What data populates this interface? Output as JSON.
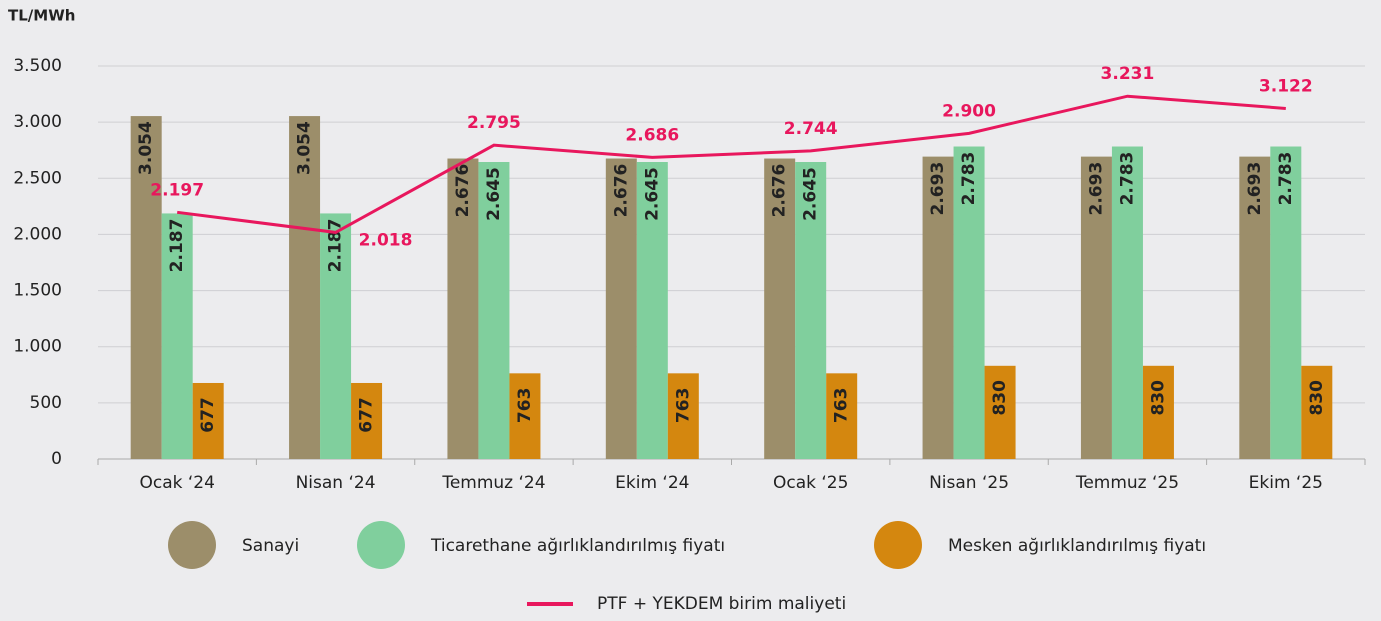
{
  "chart_data": {
    "type": "bar_line",
    "y_axis_label": "TL/MWh",
    "categories": [
      "Ocak ‘24",
      "Nisan ‘24",
      "Temmuz ‘24",
      "Ekim ‘24",
      "Ocak ‘25",
      "Nisan ‘25",
      "Temmuz ‘25",
      "Ekim ‘25"
    ],
    "series": [
      {
        "name": "Sanayi",
        "color": "#9c8e6a",
        "type": "bar",
        "values": [
          3054,
          3054,
          2676,
          2676,
          2676,
          2693,
          2693,
          2693
        ],
        "value_labels": [
          "3.054",
          "3.054",
          "2.676",
          "2.676",
          "2.676",
          "2.693",
          "2.693",
          "2.693"
        ]
      },
      {
        "name": "Ticarethane ağırlıklandırılmış fiyatı",
        "color": "#80cf9d",
        "type": "bar",
        "values": [
          2187,
          2187,
          2645,
          2645,
          2645,
          2783,
          2783,
          2783
        ],
        "value_labels": [
          "2.187",
          "2.187",
          "2.645",
          "2.645",
          "2.645",
          "2.783",
          "2.783",
          "2.783"
        ]
      },
      {
        "name": "Mesken ağırlıklandırılmış fiyatı",
        "color": "#d4870f",
        "type": "bar",
        "values": [
          677,
          677,
          763,
          763,
          763,
          830,
          830,
          830
        ]
      },
      {
        "name": "PTF + YEKDEM birim maliyeti",
        "color": "#e8175d",
        "type": "line",
        "values": [
          2197,
          2018,
          2795,
          2686,
          2744,
          2900,
          3231,
          3122
        ],
        "value_labels": [
          "2.197",
          "2.018",
          "2.795",
          "2.686",
          "2.744",
          "2.900",
          "3.231",
          "3.122"
        ]
      }
    ],
    "ylim": [
      0,
      3500
    ],
    "yticks": [
      0,
      500,
      {
        "value": 1000,
        "label": "1.000"
      },
      {
        "value": 1500,
        "label": "1.500"
      },
      {
        "value": 2000,
        "label": "2.000"
      },
      {
        "value": 2500,
        "label": "2.500"
      },
      {
        "value": 3000,
        "label": "3.000"
      },
      {
        "value": 3500,
        "label": "3.500"
      }
    ],
    "grid": true
  }
}
